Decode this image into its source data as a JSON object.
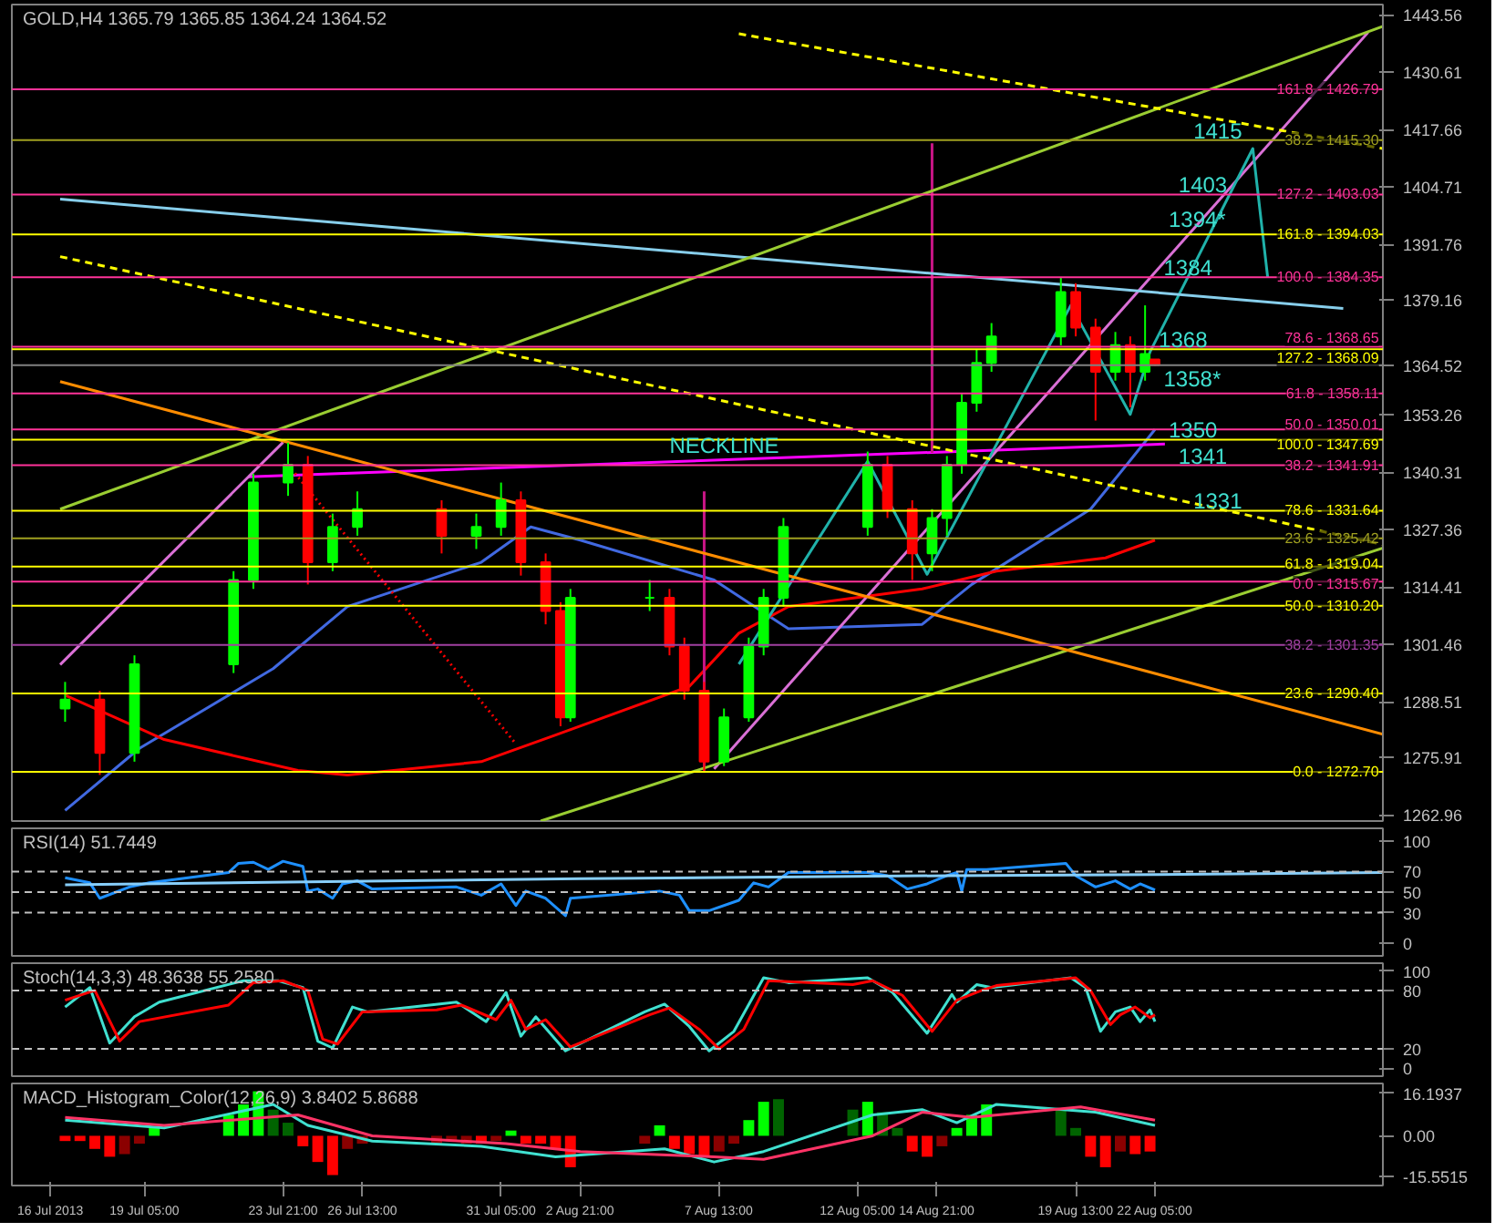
{
  "chart_data": [
    {
      "type": "candlestick",
      "title": "GOLD,H4 1365.79 1365.85 1364.24 1364.52",
      "tick_labels": "y",
      "grid": false,
      "x": [
        "2013-07-16T13:00",
        "2013-07-17T17:00",
        "2013-07-18T21:00",
        "2013-07-22T05:00",
        "2013-07-22T21:00",
        "2013-07-24T01:00",
        "2013-07-24T17:00",
        "2013-07-25T13:00",
        "2013-07-26T09:00",
        "2013-07-29T05:00",
        "2013-07-30T09:00",
        "2013-07-31T05:00",
        "2013-07-31T21:00",
        "2013-08-01T17:00",
        "2013-08-02T05:00",
        "2013-08-02T13:00",
        "2013-08-05T05:00",
        "2013-08-05T21:00",
        "2013-08-06T09:00",
        "2013-08-07T01:00",
        "2013-08-07T17:00",
        "2013-08-08T13:00",
        "2013-08-09T01:00",
        "2013-08-09T17:00",
        "2013-08-12T13:00",
        "2013-08-13T05:00",
        "2013-08-14T01:00",
        "2013-08-14T17:00",
        "2013-08-15T05:00",
        "2013-08-15T17:00",
        "2013-08-16T05:00",
        "2013-08-16T17:00",
        "2013-08-19T01:00",
        "2013-08-19T13:00",
        "2013-08-20T05:00",
        "2013-08-20T21:00",
        "2013-08-21T09:00",
        "2013-08-21T21:00",
        "2013-08-22T05:00"
      ],
      "ohlc": [
        [
          1287,
          1293,
          1284,
          1289
        ],
        [
          1289,
          1291,
          1272,
          1277
        ],
        [
          1277,
          1299,
          1275,
          1297
        ],
        [
          1297,
          1318,
          1295,
          1316
        ],
        [
          1316,
          1340,
          1314,
          1338
        ],
        [
          1338,
          1347,
          1335,
          1342
        ],
        [
          1342,
          1344,
          1315,
          1320
        ],
        [
          1320,
          1331,
          1318,
          1328
        ],
        [
          1328,
          1336,
          1326,
          1332
        ],
        [
          1332,
          1334,
          1322,
          1326
        ],
        [
          1326,
          1331,
          1323,
          1328
        ],
        [
          1328,
          1338,
          1326,
          1334
        ],
        [
          1334,
          1336,
          1317,
          1320
        ],
        [
          1320,
          1322,
          1306,
          1309
        ],
        [
          1309,
          1311,
          1283,
          1285
        ],
        [
          1285,
          1314,
          1284,
          1312
        ],
        [
          1312,
          1316,
          1309,
          1312
        ],
        [
          1312,
          1314,
          1299,
          1301
        ],
        [
          1301,
          1303,
          1289,
          1291
        ],
        [
          1291,
          1293,
          1272.7,
          1275
        ],
        [
          1275,
          1287,
          1274,
          1285
        ],
        [
          1285,
          1303,
          1284,
          1301
        ],
        [
          1301,
          1314,
          1299,
          1312
        ],
        [
          1312,
          1330,
          1310,
          1328
        ],
        [
          1328,
          1345,
          1326,
          1342
        ],
        [
          1342,
          1344,
          1330,
          1332
        ],
        [
          1332,
          1334,
          1316,
          1322
        ],
        [
          1322,
          1332,
          1318,
          1330
        ],
        [
          1330,
          1344,
          1326,
          1342
        ],
        [
          1342,
          1358,
          1340,
          1356
        ],
        [
          1356,
          1368,
          1354,
          1365
        ],
        [
          1365,
          1374,
          1363,
          1371
        ],
        [
          1371,
          1384.35,
          1369,
          1381
        ],
        [
          1381,
          1383,
          1371,
          1373
        ],
        [
          1373,
          1375,
          1352,
          1363
        ],
        [
          1363,
          1372,
          1361,
          1369
        ],
        [
          1369,
          1371,
          1355,
          1363
        ],
        [
          1363,
          1378,
          1361,
          1367
        ],
        [
          1365.79,
          1365.85,
          1364.24,
          1364.52
        ]
      ],
      "colors": [
        "#00ff00",
        "#ff0000",
        "#00ff00",
        "#00ff00",
        "#00ff00",
        "#00ff00",
        "#ff0000",
        "#00ff00",
        "#00ff00",
        "#ff0000",
        "#00ff00",
        "#00ff00",
        "#ff0000",
        "#ff0000",
        "#ff0000",
        "#00ff00",
        "#00ff00",
        "#ff0000",
        "#ff0000",
        "#ff0000",
        "#00ff00",
        "#00ff00",
        "#00ff00",
        "#00ff00",
        "#00ff00",
        "#ff0000",
        "#ff0000",
        "#00ff00",
        "#00ff00",
        "#00ff00",
        "#00ff00",
        "#00ff00",
        "#00ff00",
        "#ff0000",
        "#ff0000",
        "#00ff00",
        "#ff0000",
        "#00ff00",
        "#ff0000"
      ],
      "xlim": [
        "2013-07-14T18:00",
        "2013-08-29T21:00"
      ],
      "ylim": [
        1261.6,
        1445.9
      ],
      "yticks": [
        1443.56,
        1430.61,
        1417.66,
        1404.71,
        1391.76,
        1379.16,
        1364.52,
        1353.26,
        1340.31,
        1327.36,
        1314.41,
        1301.46,
        1288.51,
        1275.91,
        1262.96
      ],
      "series": [
        {
          "type": "line",
          "color": "#4169e1",
          "x": [
            "2013-07-16T13:00",
            "2013-07-19T01:00",
            "2013-07-23T13:00",
            "2013-07-26T01:00",
            "2013-07-30T13:00",
            "2013-08-01T05:00",
            "2013-08-02T21:00",
            "2013-08-07T09:00",
            "2013-08-09T21:00",
            "2013-08-14T09:00",
            "2013-08-16T01:00",
            "2013-08-20T01:00",
            "2013-08-21T09:00",
            "2013-08-22T05:00"
          ],
          "values": [
            1264,
            1278,
            1296,
            1310,
            1320,
            1328,
            1325,
            1316,
            1305,
            1306,
            1315,
            1332,
            1343,
            1350
          ]
        },
        {
          "type": "line",
          "color": "#ff0000",
          "x": [
            "2013-07-16T13:00",
            "2013-07-18T05:00",
            "2013-07-19T21:00",
            "2013-07-24T09:00",
            "2013-07-26T01:00",
            "2013-07-30T13:00",
            "2013-08-02T01:00",
            "2013-08-06T13:00",
            "2013-08-08T05:00",
            "2013-08-09T21:00",
            "2013-08-14T09:00",
            "2013-08-16T21:00",
            "2013-08-20T13:00",
            "2013-08-22T05:00"
          ],
          "values": [
            1290,
            1285,
            1280,
            1273,
            1272,
            1275,
            1281,
            1292,
            1304,
            1310,
            1314,
            1318,
            1321,
            1325
          ]
        },
        {
          "type": "line",
          "color": "#ff00ff",
          "x": [
            "2013-07-22T17:00",
            "2013-08-22T13:00"
          ],
          "values": [
            1339.3,
            1346.7
          ]
        },
        {
          "type": "line",
          "color": "#da70d6",
          "x": [
            "2013-08-07T09:00",
            "2013-08-29T09:00"
          ],
          "values": [
            1273.4,
            1439.6
          ]
        },
        {
          "type": "line",
          "color": "#da70d6",
          "x": [
            "2013-07-16T09:00",
            "2013-07-23T21:00"
          ],
          "values": [
            1296.9,
            1347.1
          ]
        },
        {
          "type": "line",
          "color": "#20b2aa",
          "x": [
            "2013-08-08T05:00",
            "2013-08-12T13:00",
            "2013-08-14T13:00",
            "2013-08-19T09:00",
            "2013-08-21T09:00",
            "2013-08-22T01:00",
            "2013-08-25T12:00",
            "2013-08-26T00:00"
          ],
          "values": [
            1297,
            1342.8,
            1317.3,
            1378,
            1353.4,
            1367.5,
            1413.4,
            1384.3
          ]
        },
        {
          "type": "line",
          "color": "#c71585",
          "x": [
            "2013-08-14T17:00",
            "2013-08-14T17:00"
          ],
          "values": [
            1414.6,
            1344.7
          ]
        },
        {
          "type": "line",
          "color": "#c71585",
          "x": [
            "2013-08-07T01:00",
            "2013-08-07T01:00"
          ],
          "values": [
            1336,
            1273
          ]
        },
        {
          "type": "line",
          "color": "#87ceeb",
          "x": [
            "2013-07-16T09:00",
            "2013-08-28T13:00"
          ],
          "values": [
            1402,
            1377.3
          ]
        },
        {
          "type": "line",
          "color": "#9acd32",
          "x": [
            "2013-07-16T09:00",
            "2013-08-29T21:00"
          ],
          "values": [
            1332,
            1441
          ]
        },
        {
          "type": "line",
          "color": "#9acd32",
          "x": [
            "2013-08-01T13:00",
            "2013-08-29T21:00"
          ],
          "values": [
            1261.6,
            1323.2
          ]
        },
        {
          "type": "line",
          "color": "#ffff00",
          "line_style": "dashed",
          "x": [
            "2013-08-08T05:00",
            "2013-08-29T21:00"
          ],
          "values": [
            1439.3,
            1413.4
          ]
        },
        {
          "type": "line",
          "color": "#ffff00",
          "line_style": "dashed",
          "x": [
            "2013-07-16T09:00",
            "2013-08-29T21:00"
          ],
          "values": [
            1389,
            1324
          ]
        },
        {
          "type": "line",
          "color": "#ff8c00",
          "x": [
            "2013-07-16T09:00",
            "2013-08-29T21:00"
          ],
          "values": [
            1360.8,
            1281.2
          ]
        },
        {
          "type": "line",
          "color": "#ff0000",
          "line_style": "dotted",
          "x": [
            "2013-07-24T01:00",
            "2013-07-31T17:00"
          ],
          "values": [
            1342,
            1279
          ]
        }
      ],
      "ref_lines": [
        {
          "axis": "y",
          "value": 1394.03,
          "color": "#ffff00"
        },
        {
          "axis": "y",
          "value": 1368.09,
          "color": "#ffff00"
        },
        {
          "axis": "y",
          "value": 1347.69,
          "color": "#ffff00"
        },
        {
          "axis": "y",
          "value": 1331.64,
          "color": "#ffff00"
        },
        {
          "axis": "y",
          "value": 1319.04,
          "color": "#ffff00"
        },
        {
          "axis": "y",
          "value": 1310.2,
          "color": "#ffff00"
        },
        {
          "axis": "y",
          "value": 1290.4,
          "color": "#ffff00"
        },
        {
          "axis": "y",
          "value": 1272.7,
          "color": "#ffff00"
        },
        {
          "axis": "y",
          "value": 1426.79,
          "color": "#ff3399"
        },
        {
          "axis": "y",
          "value": 1403.03,
          "color": "#ff3399"
        },
        {
          "axis": "y",
          "value": 1384.35,
          "color": "#ff3399"
        },
        {
          "axis": "y",
          "value": 1368.65,
          "color": "#ff3399"
        },
        {
          "axis": "y",
          "value": 1358.11,
          "color": "#ff3399"
        },
        {
          "axis": "y",
          "value": 1350.01,
          "color": "#ff3399"
        },
        {
          "axis": "y",
          "value": 1341.91,
          "color": "#ff3399"
        },
        {
          "axis": "y",
          "value": 1315.67,
          "color": "#ff3399"
        },
        {
          "axis": "y",
          "value": 1415.3,
          "color": "#a0a020"
        },
        {
          "axis": "y",
          "value": 1325.42,
          "color": "#a0a020"
        },
        {
          "axis": "y",
          "value": 1301.35,
          "color": "#a040a0"
        },
        {
          "axis": "y",
          "value": 1364.52,
          "color": "#808080"
        }
      ],
      "annotations": [
        {
          "text": "161.8 - 1394.03",
          "x": "2013-08-29T21:00",
          "y": 1394.03
        },
        {
          "text": "127.2 - 1368.09",
          "x": "2013-08-29T21:00",
          "y": 1368.09
        },
        {
          "text": "100.0 - 1347.69",
          "x": "2013-08-29T21:00",
          "y": 1347.69
        },
        {
          "text": "78.6 - 1331.64",
          "x": "2013-08-29T21:00",
          "y": 1331.64
        },
        {
          "text": "61.8 - 1319.04",
          "x": "2013-08-29T21:00",
          "y": 1319.04
        },
        {
          "text": "50.0 - 1310.20",
          "x": "2013-08-29T21:00",
          "y": 1310.2
        },
        {
          "text": "23.6 - 1290.40",
          "x": "2013-08-29T21:00",
          "y": 1290.4
        },
        {
          "text": "0.0 - 1272.70",
          "x": "2013-08-29T21:00",
          "y": 1272.7
        },
        {
          "text": "161.8 - 1426.79",
          "x": "2013-08-29T21:00",
          "y": 1426.79
        },
        {
          "text": "127.2 - 1403.03",
          "x": "2013-08-29T21:00",
          "y": 1403.03
        },
        {
          "text": "100.0 - 1384.35",
          "x": "2013-08-29T21:00",
          "y": 1384.35
        },
        {
          "text": "78.6 - 1368.65",
          "x": "2013-08-29T21:00",
          "y": 1368.65
        },
        {
          "text": "61.8 - 1358.11",
          "x": "2013-08-29T21:00",
          "y": 1358.11
        },
        {
          "text": "50.0 - 1350.01",
          "x": "2013-08-29T21:00",
          "y": 1350.01
        },
        {
          "text": "38.2 - 1341.91",
          "x": "2013-08-29T21:00",
          "y": 1341.91
        },
        {
          "text": "0.0 - 1315.67",
          "x": "2013-08-29T21:00",
          "y": 1315.67
        },
        {
          "text": "38.2 - 1415.30",
          "x": "2013-08-29T21:00",
          "y": 1415.3
        },
        {
          "text": "23.6 - 1325.42",
          "x": "2013-08-29T21:00",
          "y": 1325.42
        },
        {
          "text": "38.2 - 1301.35",
          "x": "2013-08-29T21:00",
          "y": 1301.35
        },
        {
          "text": "NECKLINE",
          "x": "2013-08-05T21:00",
          "y": 1343
        },
        {
          "text": "1415",
          "x": "2013-08-23T12:00",
          "y": 1415.3
        },
        {
          "text": "1403",
          "x": "2013-08-23T00:00",
          "y": 1403.03
        },
        {
          "text": "1394*",
          "x": "2013-08-22T16:00",
          "y": 1394.03
        },
        {
          "text": "1384",
          "x": "2013-08-22T12:00",
          "y": 1384.35
        },
        {
          "text": "1368",
          "x": "2013-08-22T08:00",
          "y": 1368.09
        },
        {
          "text": "1358*",
          "x": "2013-08-22T12:00",
          "y": 1358.11
        },
        {
          "text": "1350",
          "x": "2013-08-22T16:00",
          "y": 1347.69
        },
        {
          "text": "1341",
          "x": "2013-08-23T00:00",
          "y": 1341.91
        },
        {
          "text": "1331",
          "x": "2013-08-23T12:00",
          "y": 1331.64
        }
      ]
    },
    {
      "type": "line",
      "title": "RSI(14) 51.7449",
      "tick_labels": "y",
      "grid": false,
      "xlim": [
        "2013-07-14T18:00",
        "2013-08-29T21:00"
      ],
      "ylim": [
        -12,
        112
      ],
      "yticks": [
        0,
        30,
        50,
        70,
        100
      ],
      "series": [
        {
          "color": "#1e90ff",
          "x": [
            "2013-07-16T13:00",
            "2013-07-17T09:00",
            "2013-07-17T17:00",
            "2013-07-18T17:00",
            "2013-07-19T09:00",
            "2013-07-22T01:00",
            "2013-07-22T09:00",
            "2013-07-22T21:00",
            "2013-07-23T09:00",
            "2013-07-23T21:00",
            "2013-07-24T13:00",
            "2013-07-24T17:00",
            "2013-07-25T01:00",
            "2013-07-25T13:00",
            "2013-07-25T21:00",
            "2013-07-26T09:00",
            "2013-07-26T21:00",
            "2013-07-29T17:00",
            "2013-07-30T13:00",
            "2013-07-31T05:00",
            "2013-07-31T17:00",
            "2013-08-01T01:00",
            "2013-08-01T17:00",
            "2013-08-02T09:00",
            "2013-08-02T13:00",
            "2013-08-05T13:00",
            "2013-08-06T05:00",
            "2013-08-06T13:00",
            "2013-08-07T05:00",
            "2013-08-08T05:00",
            "2013-08-08T17:00",
            "2013-08-09T05:00",
            "2013-08-09T21:00",
            "2013-08-12T13:00",
            "2013-08-13T05:00",
            "2013-08-13T21:00",
            "2013-08-14T13:00",
            "2013-08-15T05:00",
            "2013-08-15T13:00",
            "2013-08-15T17:00",
            "2013-08-15T21:00",
            "2013-08-16T13:00",
            "2013-08-19T05:00",
            "2013-08-19T13:00",
            "2013-08-20T05:00",
            "2013-08-20T21:00",
            "2013-08-21T09:00",
            "2013-08-21T17:00",
            "2013-08-22T05:00"
          ],
          "values": [
            64,
            59,
            44,
            55,
            59,
            69,
            78,
            79,
            72,
            80,
            75,
            51,
            53,
            44,
            58,
            61,
            53,
            55,
            47,
            58,
            37,
            51,
            44,
            27,
            44,
            51,
            47,
            32,
            32,
            42,
            59,
            55,
            69,
            69,
            66,
            53,
            58,
            66,
            69,
            51,
            72,
            72,
            78,
            66,
            55,
            61,
            53,
            58,
            52
          ]
        },
        {
          "color": "#87cefa",
          "x": [
            "2013-07-16T13:00",
            "2013-07-24T17:00",
            "2013-08-02T21:00",
            "2013-08-15T05:00",
            "2013-08-22T05:00",
            "2013-08-29T21:00"
          ],
          "values": [
            57,
            60,
            63,
            66,
            67,
            69
          ]
        }
      ],
      "ref_lines": [
        {
          "axis": "y",
          "value": 70,
          "color": "#c0c0c0",
          "line_style": "dashed"
        },
        {
          "axis": "y",
          "value": 50,
          "color": "#c0c0c0",
          "line_style": "dashed"
        },
        {
          "axis": "y",
          "value": 30,
          "color": "#c0c0c0",
          "line_style": "dashed"
        }
      ]
    },
    {
      "type": "line",
      "title": "Stoch(14,3,3) 48.3638 55.2580",
      "tick_labels": "y",
      "grid": false,
      "xlim": [
        "2013-07-14T18:00",
        "2013-08-29T21:00"
      ],
      "ylim": [
        -8,
        108
      ],
      "yticks": [
        0,
        20,
        80,
        100
      ],
      "series": [
        {
          "color": "#40e0d0",
          "x": [
            "2013-07-16T13:00",
            "2013-07-17T09:00",
            "2013-07-18T01:00",
            "2013-07-18T21:00",
            "2013-07-19T17:00",
            "2013-07-22T13:00",
            "2013-07-23T17:00",
            "2013-07-24T13:00",
            "2013-07-25T01:00",
            "2013-07-25T13:00",
            "2013-07-26T05:00",
            "2013-07-26T17:00",
            "2013-07-29T17:00",
            "2013-07-30T17:00",
            "2013-07-31T09:00",
            "2013-07-31T21:00",
            "2013-08-01T09:00",
            "2013-08-02T09:00",
            "2013-08-05T01:00",
            "2013-08-05T17:00",
            "2013-08-06T13:00",
            "2013-08-07T05:00",
            "2013-08-08T01:00",
            "2013-08-09T01:00",
            "2013-08-09T21:00",
            "2013-08-12T13:00",
            "2013-08-13T09:00",
            "2013-08-14T13:00",
            "2013-08-15T09:00",
            "2013-08-15T13:00",
            "2013-08-16T05:00",
            "2013-08-16T17:00",
            "2013-08-19T09:00",
            "2013-08-19T21:00",
            "2013-08-20T09:00",
            "2013-08-20T21:00",
            "2013-08-21T09:00",
            "2013-08-21T17:00",
            "2013-08-22T01:00",
            "2013-08-22T05:00"
          ],
          "values": [
            63,
            83,
            26,
            53,
            68,
            90,
            90,
            83,
            28,
            21,
            63,
            58,
            68,
            48,
            78,
            33,
            53,
            18,
            58,
            66,
            43,
            18,
            38,
            93,
            88,
            93,
            78,
            36,
            76,
            68,
            86,
            83,
            93,
            83,
            38,
            58,
            63,
            48,
            60,
            48
          ]
        },
        {
          "color": "#ff0000",
          "x": [
            "2013-07-16T13:00",
            "2013-07-17T13:00",
            "2013-07-18T09:00",
            "2013-07-19T01:00",
            "2013-07-22T01:00",
            "2013-07-22T21:00",
            "2013-07-23T21:00",
            "2013-07-24T17:00",
            "2013-07-25T05:00",
            "2013-07-25T17:00",
            "2013-07-26T13:00",
            "2013-07-29T01:00",
            "2013-07-29T21:00",
            "2013-07-31T01:00",
            "2013-07-31T13:00",
            "2013-08-01T01:00",
            "2013-08-01T17:00",
            "2013-08-02T13:00",
            "2013-08-05T05:00",
            "2013-08-05T21:00",
            "2013-08-06T21:00",
            "2013-08-07T13:00",
            "2013-08-08T09:00",
            "2013-08-09T05:00",
            "2013-08-12T01:00",
            "2013-08-12T17:00",
            "2013-08-13T17:00",
            "2013-08-14T17:00",
            "2013-08-15T13:00",
            "2013-08-16T09:00",
            "2013-08-16T21:00",
            "2013-08-19T13:00",
            "2013-08-20T01:00",
            "2013-08-20T17:00",
            "2013-08-21T01:00",
            "2013-08-21T13:00",
            "2013-08-22T01:00",
            "2013-08-22T05:00"
          ],
          "values": [
            70,
            80,
            28,
            48,
            65,
            88,
            90,
            80,
            30,
            25,
            58,
            60,
            65,
            50,
            70,
            40,
            50,
            22,
            55,
            62,
            40,
            20,
            40,
            90,
            86,
            90,
            75,
            38,
            70,
            80,
            85,
            93,
            80,
            45,
            55,
            63,
            52,
            55
          ]
        }
      ],
      "ref_lines": [
        {
          "axis": "y",
          "value": 80,
          "color": "#c0c0c0",
          "line_style": "dashed"
        },
        {
          "axis": "y",
          "value": 20,
          "color": "#c0c0c0",
          "line_style": "dashed"
        }
      ]
    },
    {
      "type": "bar",
      "title": "MACD_Histogram_Color(12,26,9) 3.8402 5.8688",
      "grid": false,
      "xlim": [
        "2013-07-14T18:00",
        "2013-08-29T21:00"
      ],
      "ylim": [
        -19,
        20
      ],
      "yticks": [
        {
          "value": 16.1937,
          "label": "16.1937"
        },
        {
          "value": 0,
          "label": "0.00"
        },
        {
          "value": -15.5515,
          "label": "-15.5515"
        }
      ],
      "xticks": [
        {
          "value": "2013-07-16T01:00",
          "label": "16 Jul 2013"
        },
        {
          "value": "2013-07-19T05:00",
          "label": "19 Jul 05:00"
        },
        {
          "value": "2013-07-23T21:00",
          "label": "23 Jul 21:00"
        },
        {
          "value": "2013-07-26T13:00",
          "label": "26 Jul 13:00"
        },
        {
          "value": "2013-07-31T05:00",
          "label": "31 Jul 05:00"
        },
        {
          "value": "2013-08-02T21:00",
          "label": "2 Aug 21:00"
        },
        {
          "value": "2013-08-07T13:00",
          "label": "7 Aug 13:00"
        },
        {
          "value": "2013-08-12T05:00",
          "label": "12 Aug 05:00"
        },
        {
          "value": "2013-08-14T21:00",
          "label": "14 Aug 21:00"
        },
        {
          "value": "2013-08-19T13:00",
          "label": "19 Aug 13:00"
        },
        {
          "value": "2013-08-22T05:00",
          "label": "22 Aug 05:00"
        }
      ],
      "series": [
        {
          "type": "bar",
          "x": [
            "2013-07-16T13:00",
            "2013-07-17T01:00",
            "2013-07-17T13:00",
            "2013-07-18T01:00",
            "2013-07-18T13:00",
            "2013-07-19T01:00",
            "2013-07-19T13:00",
            "2013-07-22T01:00",
            "2013-07-22T13:00",
            "2013-07-23T01:00",
            "2013-07-23T13:00",
            "2013-07-24T01:00",
            "2013-07-24T13:00",
            "2013-07-25T01:00",
            "2013-07-25T13:00",
            "2013-07-26T01:00",
            "2013-07-26T13:00",
            "2013-07-29T01:00",
            "2013-07-29T13:00",
            "2013-07-30T01:00",
            "2013-07-30T13:00",
            "2013-07-31T01:00",
            "2013-07-31T13:00",
            "2013-08-01T01:00",
            "2013-08-01T13:00",
            "2013-08-02T01:00",
            "2013-08-02T13:00",
            "2013-08-05T01:00",
            "2013-08-05T13:00",
            "2013-08-06T01:00",
            "2013-08-06T13:00",
            "2013-08-07T01:00",
            "2013-08-07T13:00",
            "2013-08-08T01:00",
            "2013-08-08T13:00",
            "2013-08-09T01:00",
            "2013-08-09T13:00",
            "2013-08-12T01:00",
            "2013-08-12T13:00",
            "2013-08-13T01:00",
            "2013-08-13T13:00",
            "2013-08-14T01:00",
            "2013-08-14T13:00",
            "2013-08-15T01:00",
            "2013-08-15T13:00",
            "2013-08-16T01:00",
            "2013-08-16T13:00",
            "2013-08-19T01:00",
            "2013-08-19T13:00",
            "2013-08-20T01:00",
            "2013-08-20T13:00",
            "2013-08-21T01:00",
            "2013-08-21T13:00",
            "2013-08-22T01:00"
          ],
          "values": [
            -2,
            -2,
            -5,
            -8,
            -7,
            -3,
            3,
            8,
            12,
            17,
            10,
            5,
            -4,
            -10,
            -15,
            -5,
            -3,
            -3,
            -2,
            -3,
            -3,
            -2,
            2,
            -3,
            -3,
            -5,
            -12,
            -3,
            4,
            -5,
            -7,
            -8,
            -6,
            -3,
            6,
            13,
            14,
            10,
            13,
            9,
            3,
            -6,
            -8,
            -4,
            3,
            8,
            12,
            10,
            3,
            -8,
            -12,
            -6,
            -7,
            -6
          ],
          "colors": [
            "#ff0000",
            "#ff0000",
            "#ff0000",
            "#ff0000",
            "#8b0000",
            "#8b0000",
            "#00ff00",
            "#00ff00",
            "#00ff00",
            "#00ff00",
            "#006400",
            "#006400",
            "#ff0000",
            "#ff0000",
            "#ff0000",
            "#8b0000",
            "#8b0000",
            "#8b0000",
            "#8b0000",
            "#8b0000",
            "#ff0000",
            "#8b0000",
            "#00ff00",
            "#ff0000",
            "#ff0000",
            "#ff0000",
            "#ff0000",
            "#8b0000",
            "#00ff00",
            "#ff0000",
            "#ff0000",
            "#ff0000",
            "#8b0000",
            "#8b0000",
            "#00ff00",
            "#00ff00",
            "#006400",
            "#006400",
            "#00ff00",
            "#006400",
            "#006400",
            "#ff0000",
            "#ff0000",
            "#8b0000",
            "#00ff00",
            "#00ff00",
            "#00ff00",
            "#006400",
            "#006400",
            "#ff0000",
            "#ff0000",
            "#8b0000",
            "#ff0000",
            "#ff0000"
          ]
        },
        {
          "type": "line",
          "color": "#40e0d0",
          "x": [
            "2013-07-16T13:00",
            "2013-07-19T21:00",
            "2013-07-23T13:00",
            "2013-07-24T17:00",
            "2013-07-26T21:00",
            "2013-07-30T13:00",
            "2013-08-02T01:00",
            "2013-08-05T17:00",
            "2013-08-07T09:00",
            "2013-08-09T01:00",
            "2013-08-12T17:00",
            "2013-08-14T09:00",
            "2013-08-15T13:00",
            "2013-08-16T21:00",
            "2013-08-20T05:00",
            "2013-08-22T05:00"
          ],
          "values": [
            6,
            3,
            12,
            4,
            -2,
            -4,
            -8,
            -5,
            -10,
            -6,
            8,
            10,
            5,
            12,
            9,
            4
          ]
        },
        {
          "type": "line",
          "color": "#ff3366",
          "x": [
            "2013-07-16T13:00",
            "2013-07-19T21:00",
            "2013-07-24T09:00",
            "2013-07-26T21:00",
            "2013-07-31T09:00",
            "2013-08-02T21:00",
            "2013-08-07T09:00",
            "2013-08-09T01:00",
            "2013-08-12T17:00",
            "2013-08-14T09:00",
            "2013-08-16T01:00",
            "2013-08-19T17:00",
            "2013-08-22T05:00"
          ],
          "values": [
            7,
            4,
            8,
            0,
            -3,
            -6,
            -8,
            -9,
            0,
            9,
            7,
            11,
            6
          ]
        }
      ]
    }
  ]
}
